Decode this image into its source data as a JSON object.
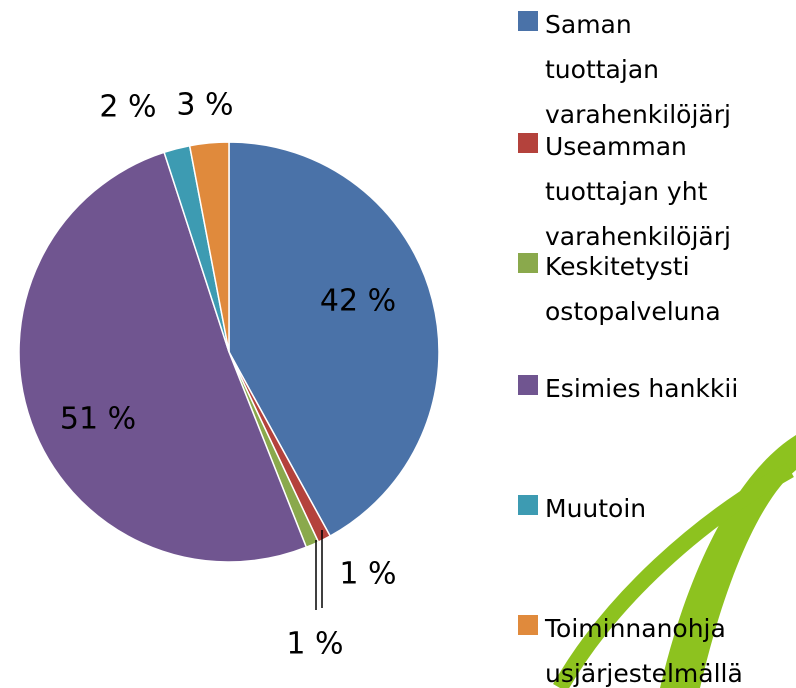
{
  "chart_data": {
    "type": "pie",
    "categories": [
      "Saman\ntuottajan\nvarahenkilöjärj",
      "Useamman\ntuottajan yht\nvarahenkilöjärj",
      "Keskitetysti\nostopalveluna",
      "Esimies hankkii",
      "Muutoin",
      "Toiminnanohja\nusjärjestelmällä"
    ],
    "values": [
      42,
      1,
      1,
      51,
      2,
      3
    ],
    "value_labels": [
      "42 %",
      "1 %",
      "1 %",
      "51 %",
      "2 %",
      "3 %"
    ],
    "colors": [
      "#4a72a8",
      "#b4423c",
      "#8aa94c",
      "#705590",
      "#3d9bb2",
      "#e08a3c"
    ],
    "legend": "right"
  }
}
